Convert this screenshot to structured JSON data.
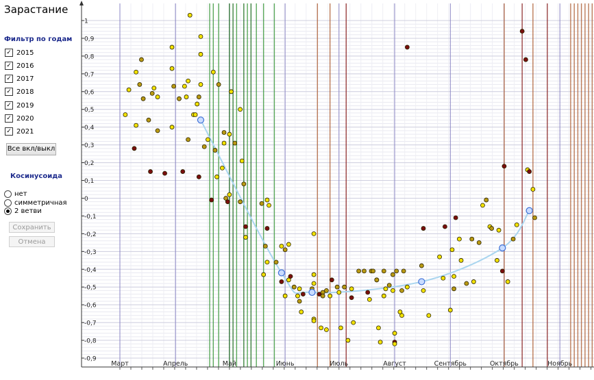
{
  "app_title": "Зарастание",
  "filter": {
    "title": "Фильтр по годам",
    "years": [
      {
        "label": "2015",
        "checked": true
      },
      {
        "label": "2016",
        "checked": true
      },
      {
        "label": "2017",
        "checked": true
      },
      {
        "label": "2018",
        "checked": true
      },
      {
        "label": "2019",
        "checked": true
      },
      {
        "label": "2020",
        "checked": true
      },
      {
        "label": "2021",
        "checked": true
      }
    ],
    "toggle_all_label": "Все вкл/выкл"
  },
  "cosine": {
    "title": "Косинусоида",
    "options": [
      {
        "label": "нет",
        "selected": false
      },
      {
        "label": "симметричная",
        "selected": false
      },
      {
        "label": "2 ветви",
        "selected": true
      }
    ]
  },
  "buttons": {
    "save_label": "Сохранить",
    "cancel_label": "Отмена"
  },
  "colors": {
    "grid_month": "#8b86c4",
    "green_line": "#3e9a3e",
    "dark_green_line": "#1e6e1e",
    "brown_line": "#b0643c",
    "dark_red_line": "#8a2323",
    "point_yellow": "#f2e200",
    "point_olive": "#b99a14",
    "point_darkred": "#7a0e0e",
    "curve": "#a9d5ef",
    "curve_point": "#c9dcff"
  },
  "chart_data": {
    "type": "scatter",
    "x_unit": "day of year",
    "xlim": [
      45,
      324
    ],
    "ylim": [
      -0.9,
      1.0
    ],
    "y_ticks": [
      -0.9,
      -0.8,
      -0.7,
      -0.6,
      -0.5,
      -0.4,
      -0.3,
      -0.2,
      -0.1,
      0,
      0.1,
      0.2,
      0.3,
      0.4,
      0.5,
      0.6,
      0.7,
      0.8,
      0.9,
      1
    ],
    "y_tick_labels": [
      "-0,9",
      "-0,8",
      "-0,7",
      "-0,6",
      "-0,5",
      "-0,4",
      "-0,3",
      "-0,2",
      "-0,1",
      "0",
      "0,1",
      "0,2",
      "0,3",
      "0,4",
      "0,5",
      "0,6",
      "0,7",
      "0,8",
      "0,9",
      "1"
    ],
    "month_ticks": [
      {
        "label": "Март",
        "day": 60
      },
      {
        "label": "Апрель",
        "day": 91
      },
      {
        "label": "Май",
        "day": 121
      },
      {
        "label": "Июнь",
        "day": 152
      },
      {
        "label": "Июль",
        "day": 182
      },
      {
        "label": "Август",
        "day": 213
      },
      {
        "label": "Сентябрь",
        "day": 244
      },
      {
        "label": "Октябрь",
        "day": 274
      },
      {
        "label": "Ноябрь",
        "day": 305
      }
    ],
    "vertical_markers": [
      {
        "day": 110,
        "color": "green"
      },
      {
        "day": 112,
        "color": "green"
      },
      {
        "day": 115,
        "color": "green"
      },
      {
        "day": 121,
        "color": "dark_green"
      },
      {
        "day": 123,
        "color": "dark_green"
      },
      {
        "day": 125,
        "color": "green"
      },
      {
        "day": 129,
        "color": "dark_green"
      },
      {
        "day": 131,
        "color": "green"
      },
      {
        "day": 133,
        "color": "dark_green"
      },
      {
        "day": 136,
        "color": "green"
      },
      {
        "day": 140,
        "color": "green"
      },
      {
        "day": 146,
        "color": "green"
      },
      {
        "day": 170,
        "color": "brown"
      },
      {
        "day": 177,
        "color": "brown"
      },
      {
        "day": 186,
        "color": "dark_red"
      },
      {
        "day": 274,
        "color": "brown"
      },
      {
        "day": 284,
        "color": "dark_red"
      },
      {
        "day": 290,
        "color": "brown"
      },
      {
        "day": 298,
        "color": "dark_red"
      },
      {
        "day": 311,
        "color": "brown"
      },
      {
        "day": 313,
        "color": "brown"
      },
      {
        "day": 315,
        "color": "brown"
      },
      {
        "day": 317,
        "color": "brown"
      },
      {
        "day": 319,
        "color": "brown"
      },
      {
        "day": 321,
        "color": "brown"
      },
      {
        "day": 323,
        "color": "brown"
      }
    ],
    "points": [
      {
        "x": 63,
        "y": 0.47,
        "c": "yellow"
      },
      {
        "x": 65,
        "y": 0.61,
        "c": "yellow"
      },
      {
        "x": 68,
        "y": 0.28,
        "c": "darkred"
      },
      {
        "x": 69,
        "y": 0.71,
        "c": "yellow"
      },
      {
        "x": 69,
        "y": 0.41,
        "c": "yellow"
      },
      {
        "x": 71,
        "y": 0.64,
        "c": "olive"
      },
      {
        "x": 72,
        "y": 0.78,
        "c": "olive"
      },
      {
        "x": 73,
        "y": 0.56,
        "c": "olive"
      },
      {
        "x": 76,
        "y": 0.44,
        "c": "olive"
      },
      {
        "x": 77,
        "y": 0.15,
        "c": "darkred"
      },
      {
        "x": 78,
        "y": 0.59,
        "c": "olive"
      },
      {
        "x": 79,
        "y": 0.62,
        "c": "yellow"
      },
      {
        "x": 81,
        "y": 0.57,
        "c": "yellow"
      },
      {
        "x": 81,
        "y": 0.38,
        "c": "olive"
      },
      {
        "x": 85,
        "y": 0.14,
        "c": "darkred"
      },
      {
        "x": 89,
        "y": 0.85,
        "c": "yellow"
      },
      {
        "x": 89,
        "y": 0.73,
        "c": "yellow"
      },
      {
        "x": 89,
        "y": 0.4,
        "c": "yellow"
      },
      {
        "x": 90,
        "y": 0.63,
        "c": "olive"
      },
      {
        "x": 93,
        "y": 0.56,
        "c": "olive"
      },
      {
        "x": 95,
        "y": 0.15,
        "c": "darkred"
      },
      {
        "x": 96,
        "y": 0.63,
        "c": "yellow"
      },
      {
        "x": 97,
        "y": 0.57,
        "c": "yellow"
      },
      {
        "x": 98,
        "y": 0.66,
        "c": "yellow"
      },
      {
        "x": 98,
        "y": 0.33,
        "c": "olive"
      },
      {
        "x": 99,
        "y": 1.03,
        "c": "yellow"
      },
      {
        "x": 101,
        "y": 0.47,
        "c": "yellow"
      },
      {
        "x": 102,
        "y": 0.47,
        "c": "yellow"
      },
      {
        "x": 103,
        "y": 0.53,
        "c": "yellow"
      },
      {
        "x": 104,
        "y": 0.57,
        "c": "olive"
      },
      {
        "x": 104,
        "y": 0.12,
        "c": "darkred"
      },
      {
        "x": 105,
        "y": 0.64,
        "c": "yellow"
      },
      {
        "x": 105,
        "y": 0.91,
        "c": "yellow"
      },
      {
        "x": 105,
        "y": 0.81,
        "c": "yellow"
      },
      {
        "x": 107,
        "y": 0.29,
        "c": "olive"
      },
      {
        "x": 109,
        "y": 0.33,
        "c": "yellow"
      },
      {
        "x": 111,
        "y": -0.01,
        "c": "darkred"
      },
      {
        "x": 112,
        "y": 0.71,
        "c": "yellow"
      },
      {
        "x": 113,
        "y": 0.27,
        "c": "olive"
      },
      {
        "x": 114,
        "y": 0.12,
        "c": "yellow"
      },
      {
        "x": 115,
        "y": 0.64,
        "c": "olive"
      },
      {
        "x": 117,
        "y": 0.17,
        "c": "yellow"
      },
      {
        "x": 118,
        "y": 0.37,
        "c": "olive"
      },
      {
        "x": 118,
        "y": 0.31,
        "c": "yellow"
      },
      {
        "x": 119,
        "y": 0.0,
        "c": "olive"
      },
      {
        "x": 120,
        "y": -0.02,
        "c": "darkred"
      },
      {
        "x": 121,
        "y": 0.36,
        "c": "yellow"
      },
      {
        "x": 121,
        "y": 0.02,
        "c": "yellow"
      },
      {
        "x": 122,
        "y": 0.6,
        "c": "yellow"
      },
      {
        "x": 124,
        "y": 0.31,
        "c": "olive"
      },
      {
        "x": 127,
        "y": 0.5,
        "c": "yellow"
      },
      {
        "x": 127,
        "y": -0.02,
        "c": "olive"
      },
      {
        "x": 128,
        "y": 0.21,
        "c": "yellow"
      },
      {
        "x": 129,
        "y": 0.08,
        "c": "olive"
      },
      {
        "x": 130,
        "y": -0.22,
        "c": "yellow"
      },
      {
        "x": 130,
        "y": -0.16,
        "c": "darkred"
      },
      {
        "x": 139,
        "y": -0.03,
        "c": "olive"
      },
      {
        "x": 140,
        "y": -0.43,
        "c": "yellow"
      },
      {
        "x": 141,
        "y": -0.27,
        "c": "olive"
      },
      {
        "x": 142,
        "y": -0.36,
        "c": "yellow"
      },
      {
        "x": 142,
        "y": -0.17,
        "c": "darkred"
      },
      {
        "x": 142,
        "y": -0.01,
        "c": "yellow"
      },
      {
        "x": 143,
        "y": -0.04,
        "c": "yellow"
      },
      {
        "x": 147,
        "y": -0.36,
        "c": "olive"
      },
      {
        "x": 150,
        "y": -0.47,
        "c": "darkred"
      },
      {
        "x": 150,
        "y": -0.27,
        "c": "yellow"
      },
      {
        "x": 152,
        "y": -0.29,
        "c": "olive"
      },
      {
        "x": 152,
        "y": -0.55,
        "c": "yellow"
      },
      {
        "x": 154,
        "y": -0.46,
        "c": "yellow"
      },
      {
        "x": 154,
        "y": -0.26,
        "c": "yellow"
      },
      {
        "x": 155,
        "y": -0.44,
        "c": "darkred"
      },
      {
        "x": 157,
        "y": -0.5,
        "c": "olive"
      },
      {
        "x": 159,
        "y": -0.55,
        "c": "yellow"
      },
      {
        "x": 160,
        "y": -0.58,
        "c": "olive"
      },
      {
        "x": 160,
        "y": -0.51,
        "c": "yellow"
      },
      {
        "x": 161,
        "y": -0.64,
        "c": "yellow"
      },
      {
        "x": 162,
        "y": -0.54,
        "c": "darkred"
      },
      {
        "x": 167,
        "y": -0.51,
        "c": "olive"
      },
      {
        "x": 168,
        "y": -0.48,
        "c": "yellow"
      },
      {
        "x": 168,
        "y": -0.43,
        "c": "yellow"
      },
      {
        "x": 168,
        "y": -0.68,
        "c": "yellow"
      },
      {
        "x": 168,
        "y": -0.69,
        "c": "yellow"
      },
      {
        "x": 168,
        "y": -0.2,
        "c": "yellow"
      },
      {
        "x": 171,
        "y": -0.54,
        "c": "darkred"
      },
      {
        "x": 172,
        "y": -0.73,
        "c": "yellow"
      },
      {
        "x": 173,
        "y": -0.53,
        "c": "olive"
      },
      {
        "x": 173,
        "y": -0.55,
        "c": "olive"
      },
      {
        "x": 175,
        "y": -0.52,
        "c": "olive"
      },
      {
        "x": 175,
        "y": -0.74,
        "c": "yellow"
      },
      {
        "x": 177,
        "y": -0.55,
        "c": "yellow"
      },
      {
        "x": 178,
        "y": -0.46,
        "c": "darkred"
      },
      {
        "x": 181,
        "y": -0.5,
        "c": "olive"
      },
      {
        "x": 182,
        "y": -0.53,
        "c": "yellow"
      },
      {
        "x": 183,
        "y": -0.73,
        "c": "yellow"
      },
      {
        "x": 185,
        "y": -0.5,
        "c": "olive"
      },
      {
        "x": 187,
        "y": -0.8,
        "c": "yellow"
      },
      {
        "x": 189,
        "y": -0.51,
        "c": "yellow"
      },
      {
        "x": 189,
        "y": -0.56,
        "c": "darkred"
      },
      {
        "x": 190,
        "y": -0.7,
        "c": "yellow"
      },
      {
        "x": 193,
        "y": -0.41,
        "c": "olive"
      },
      {
        "x": 196,
        "y": -0.41,
        "c": "olive"
      },
      {
        "x": 198,
        "y": -0.53,
        "c": "darkred"
      },
      {
        "x": 199,
        "y": -0.57,
        "c": "yellow"
      },
      {
        "x": 200,
        "y": -0.41,
        "c": "olive"
      },
      {
        "x": 201,
        "y": -0.41,
        "c": "olive"
      },
      {
        "x": 203,
        "y": -0.46,
        "c": "yellow"
      },
      {
        "x": 203,
        "y": -0.46,
        "c": "olive"
      },
      {
        "x": 204,
        "y": -0.73,
        "c": "yellow"
      },
      {
        "x": 205,
        "y": -0.81,
        "c": "yellow"
      },
      {
        "x": 207,
        "y": -0.41,
        "c": "olive"
      },
      {
        "x": 207,
        "y": -0.55,
        "c": "yellow"
      },
      {
        "x": 208,
        "y": -0.51,
        "c": "yellow"
      },
      {
        "x": 210,
        "y": -0.49,
        "c": "olive"
      },
      {
        "x": 212,
        "y": -0.52,
        "c": "yellow"
      },
      {
        "x": 212,
        "y": -0.43,
        "c": "olive"
      },
      {
        "x": 213,
        "y": -0.81,
        "c": "darkred"
      },
      {
        "x": 213,
        "y": -0.76,
        "c": "yellow"
      },
      {
        "x": 213,
        "y": -0.82,
        "c": "yellow"
      },
      {
        "x": 214,
        "y": -0.41,
        "c": "olive"
      },
      {
        "x": 216,
        "y": -0.64,
        "c": "yellow"
      },
      {
        "x": 217,
        "y": -0.66,
        "c": "yellow"
      },
      {
        "x": 217,
        "y": -0.52,
        "c": "olive"
      },
      {
        "x": 218,
        "y": -0.41,
        "c": "olive"
      },
      {
        "x": 220,
        "y": 0.85,
        "c": "darkred"
      },
      {
        "x": 220,
        "y": -0.5,
        "c": "yellow"
      },
      {
        "x": 228,
        "y": -0.38,
        "c": "olive"
      },
      {
        "x": 229,
        "y": -0.52,
        "c": "yellow"
      },
      {
        "x": 229,
        "y": -0.17,
        "c": "darkred"
      },
      {
        "x": 232,
        "y": -0.66,
        "c": "yellow"
      },
      {
        "x": 238,
        "y": -0.33,
        "c": "yellow"
      },
      {
        "x": 240,
        "y": -0.45,
        "c": "yellow"
      },
      {
        "x": 241,
        "y": -0.16,
        "c": "darkred"
      },
      {
        "x": 244,
        "y": -0.63,
        "c": "yellow"
      },
      {
        "x": 245,
        "y": -0.29,
        "c": "yellow"
      },
      {
        "x": 246,
        "y": -0.44,
        "c": "yellow"
      },
      {
        "x": 246,
        "y": -0.51,
        "c": "olive"
      },
      {
        "x": 247,
        "y": -0.11,
        "c": "darkred"
      },
      {
        "x": 249,
        "y": -0.23,
        "c": "yellow"
      },
      {
        "x": 250,
        "y": -0.35,
        "c": "yellow"
      },
      {
        "x": 253,
        "y": -0.48,
        "c": "olive"
      },
      {
        "x": 256,
        "y": -0.23,
        "c": "olive"
      },
      {
        "x": 257,
        "y": -0.47,
        "c": "yellow"
      },
      {
        "x": 260,
        "y": -0.25,
        "c": "olive"
      },
      {
        "x": 262,
        "y": -0.04,
        "c": "yellow"
      },
      {
        "x": 264,
        "y": -0.01,
        "c": "olive"
      },
      {
        "x": 266,
        "y": -0.16,
        "c": "yellow"
      },
      {
        "x": 267,
        "y": -0.17,
        "c": "olive"
      },
      {
        "x": 270,
        "y": -0.35,
        "c": "yellow"
      },
      {
        "x": 271,
        "y": -0.18,
        "c": "yellow"
      },
      {
        "x": 273,
        "y": -0.41,
        "c": "darkred"
      },
      {
        "x": 274,
        "y": 0.18,
        "c": "darkred"
      },
      {
        "x": 276,
        "y": -0.47,
        "c": "yellow"
      },
      {
        "x": 279,
        "y": -0.23,
        "c": "olive"
      },
      {
        "x": 281,
        "y": -0.15,
        "c": "yellow"
      },
      {
        "x": 284,
        "y": 0.94,
        "c": "darkred"
      },
      {
        "x": 286,
        "y": 0.78,
        "c": "darkred"
      },
      {
        "x": 287,
        "y": 0.16,
        "c": "yellow"
      },
      {
        "x": 288,
        "y": 0.15,
        "c": "darkred"
      },
      {
        "x": 290,
        "y": 0.05,
        "c": "yellow"
      },
      {
        "x": 291,
        "y": -0.11,
        "c": "olive"
      }
    ],
    "curve_points": [
      {
        "x": 105,
        "y": 0.44
      },
      {
        "x": 150,
        "y": -0.42
      },
      {
        "x": 167,
        "y": -0.53
      },
      {
        "x": 228,
        "y": -0.47
      },
      {
        "x": 273,
        "y": -0.28
      },
      {
        "x": 288,
        "y": -0.07
      }
    ]
  }
}
